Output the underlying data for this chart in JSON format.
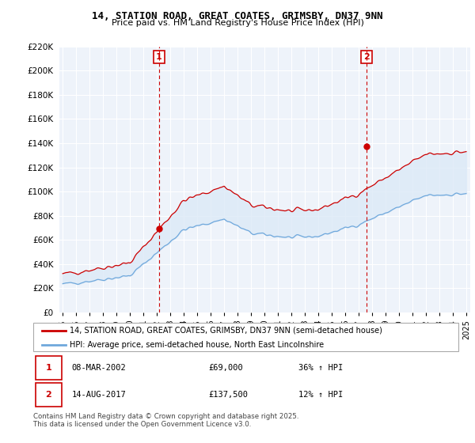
{
  "title": "14, STATION ROAD, GREAT COATES, GRIMSBY, DN37 9NN",
  "subtitle": "Price paid vs. HM Land Registry's House Price Index (HPI)",
  "legend_line1": "14, STATION ROAD, GREAT COATES, GRIMSBY, DN37 9NN (semi-detached house)",
  "legend_line2": "HPI: Average price, semi-detached house, North East Lincolnshire",
  "footer": "Contains HM Land Registry data © Crown copyright and database right 2025.\nThis data is licensed under the Open Government Licence v3.0.",
  "table": [
    {
      "num": "1",
      "date": "08-MAR-2002",
      "price": "£69,000",
      "hpi": "36% ↑ HPI"
    },
    {
      "num": "2",
      "date": "14-AUG-2017",
      "price": "£137,500",
      "hpi": "12% ↑ HPI"
    }
  ],
  "sale1_year": 2002,
  "sale1_month": 3,
  "sale1_price": 69000,
  "sale2_year": 2017,
  "sale2_month": 8,
  "sale2_price": 137500,
  "hpi_color": "#6fa8dc",
  "price_color": "#cc0000",
  "fill_color": "#dce9f7",
  "vline_color": "#cc0000",
  "dot_color": "#cc0000",
  "ylim_min": 0,
  "ylim_max": 220000,
  "ytick_step": 20000,
  "bg_color": "#eef3fa"
}
